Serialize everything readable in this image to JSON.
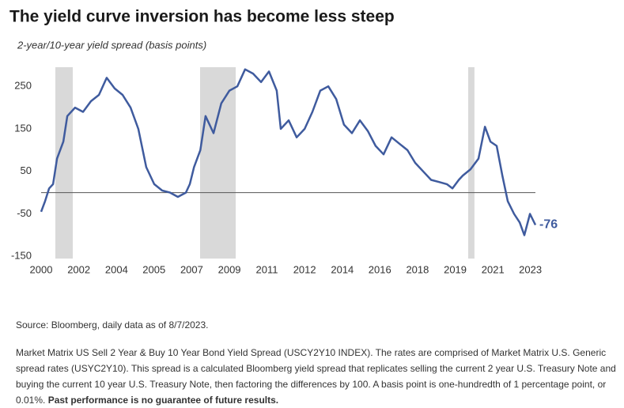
{
  "chart_data": {
    "type": "line",
    "title": "The yield curve inversion has become less steep",
    "subtitle": "2-year/10-year yield spread (basis points)",
    "x": [
      2000.0,
      2000.19,
      2000.38,
      2000.57,
      2000.76,
      2001.06,
      2001.25,
      2001.62,
      2002.0,
      2002.38,
      2002.76,
      2003.13,
      2003.51,
      2003.89,
      2004.27,
      2004.64,
      2005.02,
      2005.4,
      2005.78,
      2006.16,
      2006.53,
      2006.91,
      2007.1,
      2007.3,
      2007.6,
      2007.85,
      2008.23,
      2008.6,
      2008.99,
      2009.37,
      2009.74,
      2010.12,
      2010.5,
      2010.88,
      2011.25,
      2011.44,
      2011.82,
      2012.2,
      2012.58,
      2012.95,
      2013.33,
      2013.71,
      2014.09,
      2014.46,
      2014.84,
      2015.22,
      2015.6,
      2015.97,
      2016.35,
      2016.73,
      2017.11,
      2017.49,
      2017.86,
      2018.24,
      2018.62,
      2019.0,
      2019.37,
      2019.64,
      2019.94,
      2020.13,
      2020.5,
      2020.88,
      2021.19,
      2021.45,
      2021.75,
      2022.02,
      2022.28,
      2022.58,
      2022.85,
      2023.07,
      2023.34,
      2023.6
    ],
    "series": [
      {
        "name": "2-year/10-year yield spread",
        "color": "#3f5b9e",
        "values": [
          -45,
          -20,
          10,
          20,
          80,
          120,
          180,
          200,
          190,
          215,
          230,
          270,
          245,
          230,
          200,
          150,
          60,
          20,
          5,
          0,
          -10,
          0,
          20,
          60,
          100,
          180,
          140,
          210,
          240,
          250,
          290,
          280,
          260,
          285,
          240,
          150,
          170,
          130,
          150,
          190,
          240,
          250,
          220,
          160,
          140,
          170,
          145,
          110,
          90,
          130,
          115,
          100,
          70,
          50,
          30,
          25,
          20,
          10,
          30,
          40,
          55,
          80,
          155,
          120,
          110,
          40,
          -20,
          -50,
          -70,
          -100,
          -50,
          -76
        ]
      }
    ],
    "recessions": [
      [
        2000.68,
        2001.51
      ],
      [
        2007.59,
        2009.29
      ],
      [
        2020.39,
        2020.69
      ]
    ],
    "recession_color": "#d9d9d9",
    "reference_line": 0,
    "xlim": [
      2000,
      2023.6
    ],
    "xticks": [
      {
        "value": 2000,
        "label": "2000"
      },
      {
        "value": 2001.8,
        "label": "2002"
      },
      {
        "value": 2003.6,
        "label": "2004"
      },
      {
        "value": 2005.39,
        "label": "2005"
      },
      {
        "value": 2007.19,
        "label": "2007"
      },
      {
        "value": 2008.99,
        "label": "2009"
      },
      {
        "value": 2010.78,
        "label": "2011"
      },
      {
        "value": 2012.58,
        "label": "2012"
      },
      {
        "value": 2014.38,
        "label": "2014"
      },
      {
        "value": 2016.17,
        "label": "2016"
      },
      {
        "value": 2017.97,
        "label": "2018"
      },
      {
        "value": 2019.77,
        "label": "2019"
      },
      {
        "value": 2021.57,
        "label": "2021"
      },
      {
        "value": 2023.36,
        "label": "2023"
      }
    ],
    "ylim": [
      -155,
      295
    ],
    "yticks": [
      250,
      150,
      50,
      -50,
      -150
    ],
    "grid": false
  },
  "notes": {
    "source": "Source: Bloomberg, daily data as of 8/7/2023.",
    "description": "Market Matrix US Sell 2 Year & Buy 10 Year Bond Yield Spread (USCY2Y10 INDEX). The rates are comprised of Market Matrix U.S. Generic spread rates (USYC2Y10). This spread is a calculated Bloomberg yield spread that replicates selling the current 2 year U.S. Treasury Note and buying the current 10 year U.S. Treasury Note, then factoring the differences by 100. A basis point is one-hundredth of 1 percentage point, or 0.01%.",
    "disclaimer": "Past performance is no guarantee of future results."
  }
}
